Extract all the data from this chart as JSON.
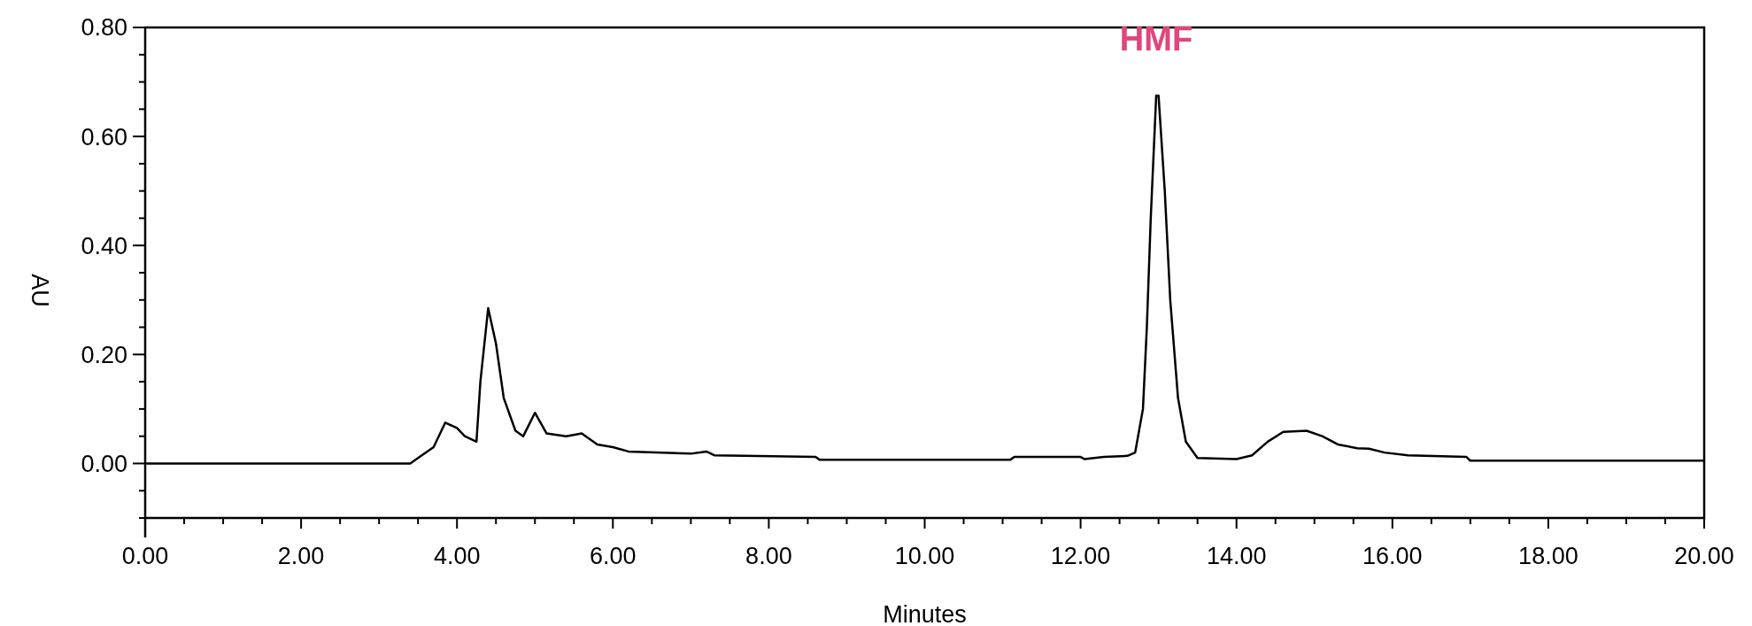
{
  "chart_data": {
    "type": "line",
    "xlabel": "Minutes",
    "ylabel": "AU",
    "annotations": [
      {
        "text": "HMF",
        "x": 12.97,
        "y": 0.675
      }
    ],
    "xlim": [
      0,
      20
    ],
    "ylim": [
      -0.1,
      0.8
    ],
    "xticks": [
      {
        "value": 0,
        "label": "0.00"
      },
      {
        "value": 0.5,
        "label": null
      },
      {
        "value": 1,
        "label": null
      },
      {
        "value": 1.5,
        "label": null
      },
      {
        "value": 2,
        "label": "2.00"
      },
      {
        "value": 2.5,
        "label": null
      },
      {
        "value": 3,
        "label": null
      },
      {
        "value": 3.5,
        "label": null
      },
      {
        "value": 4,
        "label": "4.00"
      },
      {
        "value": 4.5,
        "label": null
      },
      {
        "value": 5,
        "label": null
      },
      {
        "value": 5.5,
        "label": null
      },
      {
        "value": 6,
        "label": "6.00"
      },
      {
        "value": 6.5,
        "label": null
      },
      {
        "value": 7,
        "label": null
      },
      {
        "value": 7.5,
        "label": null
      },
      {
        "value": 8,
        "label": "8.00"
      },
      {
        "value": 8.5,
        "label": null
      },
      {
        "value": 9,
        "label": null
      },
      {
        "value": 9.5,
        "label": null
      },
      {
        "value": 10,
        "label": "10.00"
      },
      {
        "value": 10.5,
        "label": null
      },
      {
        "value": 11,
        "label": null
      },
      {
        "value": 11.5,
        "label": null
      },
      {
        "value": 12,
        "label": "12.00"
      },
      {
        "value": 12.5,
        "label": null
      },
      {
        "value": 13,
        "label": null
      },
      {
        "value": 13.5,
        "label": null
      },
      {
        "value": 14,
        "label": "14.00"
      },
      {
        "value": 14.5,
        "label": null
      },
      {
        "value": 15,
        "label": null
      },
      {
        "value": 15.5,
        "label": null
      },
      {
        "value": 16,
        "label": "16.00"
      },
      {
        "value": 16.5,
        "label": null
      },
      {
        "value": 17,
        "label": null
      },
      {
        "value": 17.5,
        "label": null
      },
      {
        "value": 18,
        "label": "18.00"
      },
      {
        "value": 18.5,
        "label": null
      },
      {
        "value": 19,
        "label": null
      },
      {
        "value": 19.5,
        "label": null
      },
      {
        "value": 20,
        "label": "20.00"
      }
    ],
    "yticks": [
      {
        "value": -0.1,
        "label": null
      },
      {
        "value": -0.05,
        "label": null
      },
      {
        "value": 0,
        "label": "0.00"
      },
      {
        "value": 0.05,
        "label": null
      },
      {
        "value": 0.1,
        "label": null
      },
      {
        "value": 0.15,
        "label": null
      },
      {
        "value": 0.2,
        "label": "0.20"
      },
      {
        "value": 0.25,
        "label": null
      },
      {
        "value": 0.3,
        "label": null
      },
      {
        "value": 0.35,
        "label": null
      },
      {
        "value": 0.4,
        "label": "0.40"
      },
      {
        "value": 0.45,
        "label": null
      },
      {
        "value": 0.5,
        "label": null
      },
      {
        "value": 0.55,
        "label": null
      },
      {
        "value": 0.6,
        "label": "0.60"
      },
      {
        "value": 0.65,
        "label": null
      },
      {
        "value": 0.7,
        "label": null
      },
      {
        "value": 0.75,
        "label": null
      },
      {
        "value": 0.8,
        "label": "0.80"
      }
    ],
    "marker": "none",
    "line_style": "solid",
    "series": [
      {
        "color": "#000000",
        "x": [
          0,
          3.4,
          3.5,
          3.7,
          3.85,
          4.0,
          4.1,
          4.25,
          4.3,
          4.4,
          4.5,
          4.6,
          4.75,
          4.85,
          5.0,
          5.15,
          5.4,
          5.6,
          5.8,
          6.0,
          6.2,
          7.0,
          7.2,
          7.3,
          8.6,
          8.65,
          11.1,
          11.15,
          12.0,
          12.05,
          12.3,
          12.6,
          12.7,
          12.8,
          12.85,
          12.9,
          12.97,
          13.0,
          13.08,
          13.15,
          13.25,
          13.35,
          13.5,
          14.0,
          14.2,
          14.4,
          14.6,
          14.9,
          15.1,
          15.3,
          15.55,
          15.7,
          15.9,
          16.2,
          16.95,
          17.0,
          20
        ],
        "values": [
          0,
          0,
          0.01,
          0.03,
          0.075,
          0.065,
          0.05,
          0.04,
          0.15,
          0.285,
          0.22,
          0.12,
          0.06,
          0.05,
          0.093,
          0.055,
          0.05,
          0.055,
          0.035,
          0.03,
          0.022,
          0.018,
          0.022,
          0.015,
          0.012,
          0.007,
          0.007,
          0.012,
          0.012,
          0.008,
          0.012,
          0.014,
          0.02,
          0.1,
          0.25,
          0.45,
          0.675,
          0.675,
          0.5,
          0.3,
          0.12,
          0.04,
          0.01,
          0.008,
          0.015,
          0.04,
          0.058,
          0.06,
          0.05,
          0.035,
          0.028,
          0.027,
          0.02,
          0.015,
          0.012,
          0.005,
          0.005
        ]
      }
    ]
  }
}
